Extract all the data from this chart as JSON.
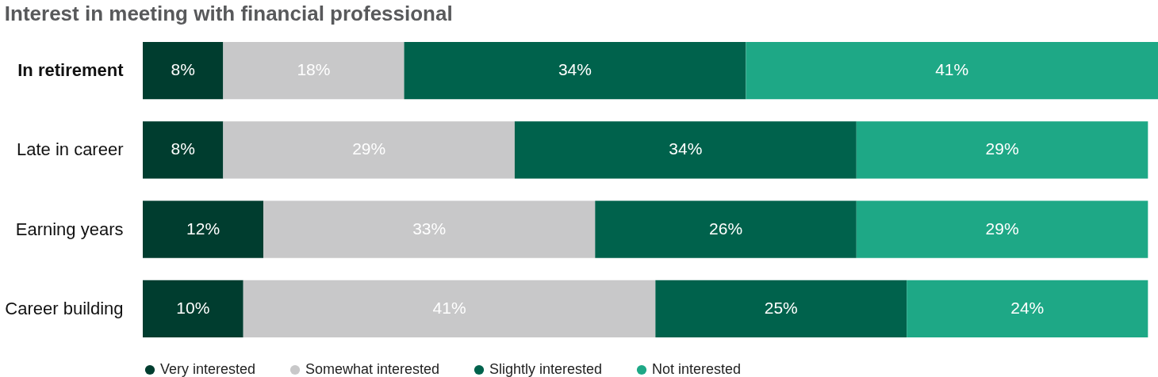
{
  "chart_data": {
    "type": "bar",
    "orientation": "horizontal",
    "stacked": true,
    "title": "Interest in meeting with financial professional",
    "categories": [
      "In retirement",
      "Late in career",
      "Earning years",
      "Career building"
    ],
    "series": [
      {
        "name": "Very interested",
        "color": "#003d2f",
        "values": [
          8,
          8,
          12,
          10
        ],
        "value_labels": [
          "8%",
          "8%",
          "12%",
          "10%"
        ]
      },
      {
        "name": "Somewhat interested",
        "color": "#c8c8c9",
        "values": [
          18,
          29,
          33,
          41
        ],
        "value_labels": [
          "18%",
          "29%",
          "33%",
          "41%"
        ]
      },
      {
        "name": "Slightly interested",
        "color": "#00624c",
        "values": [
          34,
          34,
          26,
          25
        ],
        "value_labels": [
          "34%",
          "34%",
          "26%",
          "25%"
        ]
      },
      {
        "name": "Not interested",
        "color": "#1ea886",
        "values": [
          41,
          29,
          29,
          24
        ],
        "value_labels": [
          "41%",
          "29%",
          "29%",
          "24%"
        ]
      }
    ],
    "legend": "bottom left",
    "grid": false
  }
}
